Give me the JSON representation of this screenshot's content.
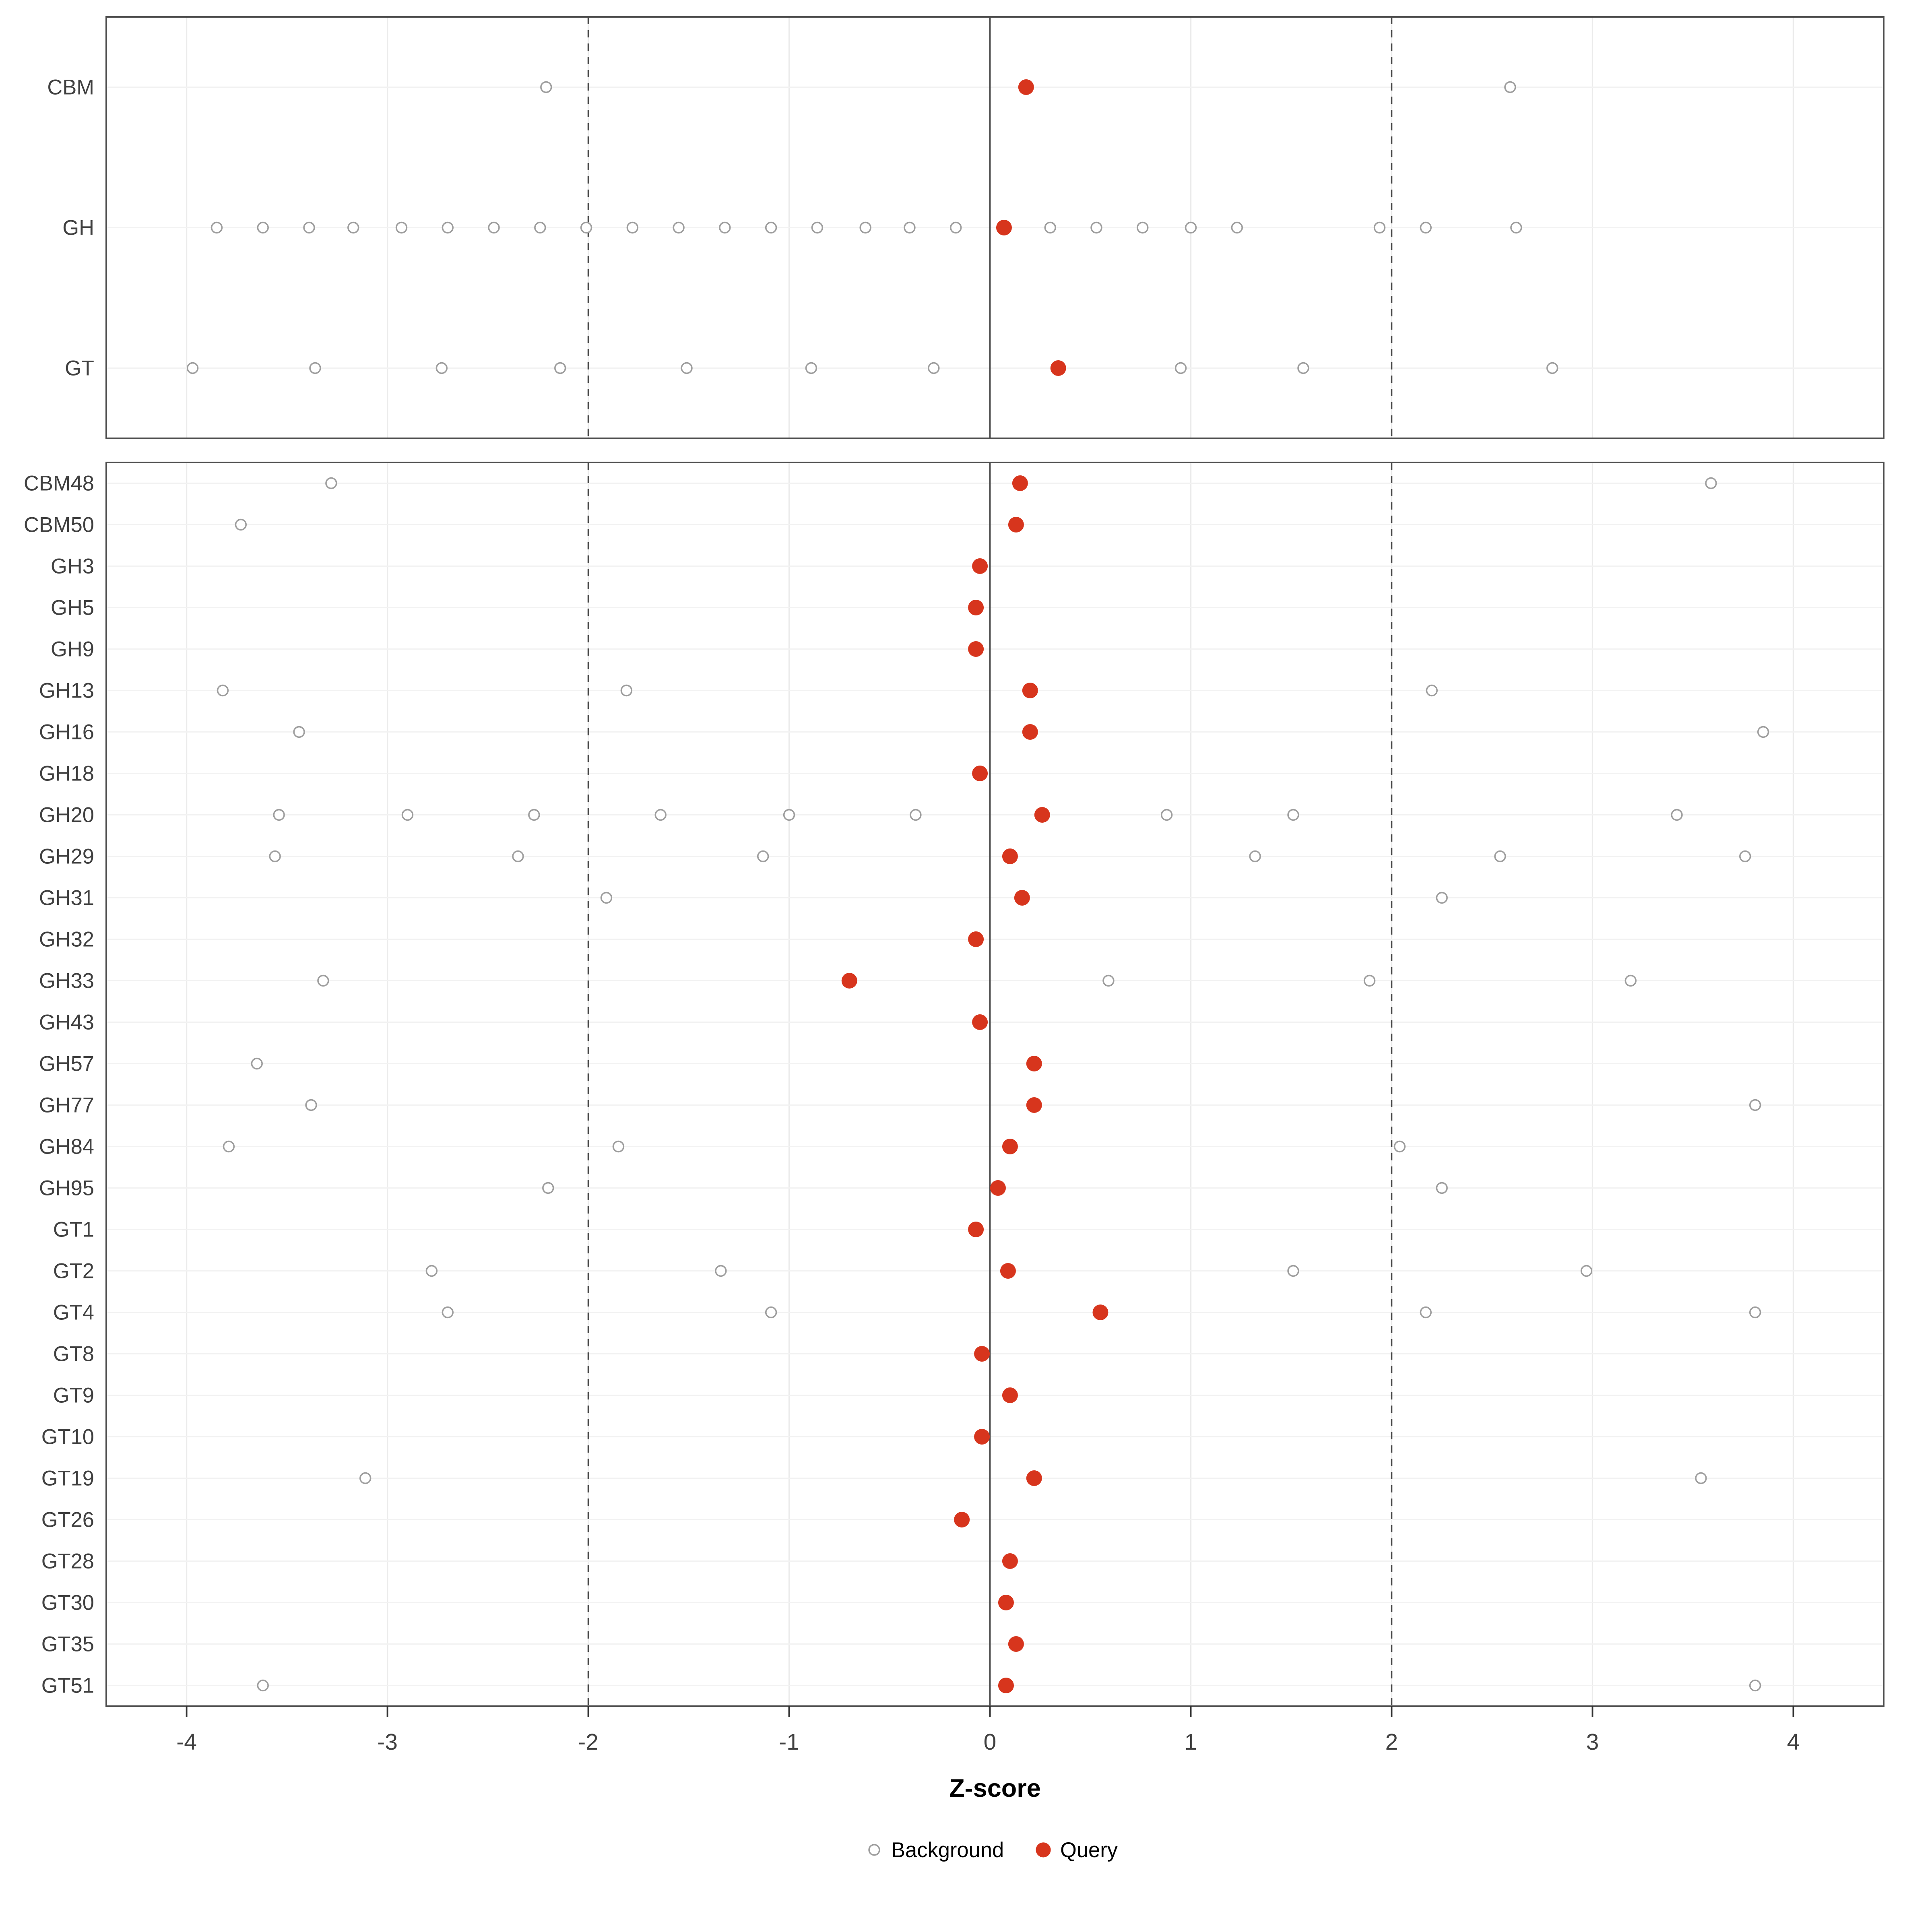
{
  "chart_data": {
    "type": "scatter",
    "title": "",
    "xlabel": "Z-score",
    "xlim": [
      -4.4,
      4.45
    ],
    "x_ticks": [
      -4,
      -3,
      -2,
      -1,
      0,
      1,
      2,
      3,
      4
    ],
    "grid": true,
    "reference_lines": {
      "solid": [
        0
      ],
      "dashed": [
        -2,
        2
      ]
    },
    "legend": {
      "position": "bottom",
      "items": [
        {
          "label": "Background",
          "marker": "open-circle"
        },
        {
          "label": "Query",
          "marker": "filled-circle"
        }
      ]
    },
    "colors": {
      "query_fill": "#d7351d",
      "background_stroke": "#9e9e9e",
      "grid": "#ebebeb",
      "row_grid": "#f2f2f2",
      "reference_line": "#4a4a4a",
      "panel_border": "#4d4d4d",
      "axis_text": "#404040",
      "tick_mark": "#333333",
      "label_text": "#000000"
    },
    "panels": [
      {
        "name": "summary",
        "rows": [
          {
            "label": "CBM",
            "background": [
              -2.21,
              2.59
            ],
            "query": [
              0.18
            ]
          },
          {
            "label": "GH",
            "background": [
              -3.85,
              -3.62,
              -3.39,
              -3.17,
              -2.93,
              -2.7,
              -2.47,
              -2.24,
              -2.01,
              -1.78,
              -1.55,
              -1.32,
              -1.09,
              -0.86,
              -0.62,
              -0.4,
              -0.17,
              0.3,
              0.53,
              0.76,
              1.0,
              1.23,
              1.94,
              2.17,
              2.62
            ],
            "query": [
              0.07
            ]
          },
          {
            "label": "GT",
            "background": [
              -3.97,
              -3.36,
              -2.73,
              -2.14,
              -1.51,
              -0.89,
              -0.28,
              0.95,
              1.56,
              2.8
            ],
            "query": [
              0.34
            ]
          }
        ]
      },
      {
        "name": "families",
        "rows": [
          {
            "label": "CBM48",
            "background": [
              -3.28,
              3.59
            ],
            "query": [
              0.15
            ]
          },
          {
            "label": "CBM50",
            "background": [
              -3.73
            ],
            "query": [
              0.13
            ]
          },
          {
            "label": "GH3",
            "background": [],
            "query": [
              -0.05
            ]
          },
          {
            "label": "GH5",
            "background": [],
            "query": [
              -0.07
            ]
          },
          {
            "label": "GH9",
            "background": [],
            "query": [
              -0.07
            ]
          },
          {
            "label": "GH13",
            "background": [
              -3.82,
              -1.81,
              2.2
            ],
            "query": [
              0.2
            ]
          },
          {
            "label": "GH16",
            "background": [
              -3.44,
              3.85
            ],
            "query": [
              0.2
            ]
          },
          {
            "label": "GH18",
            "background": [],
            "query": [
              -0.05
            ]
          },
          {
            "label": "GH20",
            "background": [
              -3.54,
              -2.9,
              -2.27,
              -1.64,
              -1.0,
              -0.37,
              0.88,
              1.51,
              3.42
            ],
            "query": [
              0.26
            ]
          },
          {
            "label": "GH29",
            "background": [
              -3.56,
              -2.35,
              -1.13,
              1.32,
              2.54,
              3.76
            ],
            "query": [
              0.1
            ]
          },
          {
            "label": "GH31",
            "background": [
              -1.91,
              2.25
            ],
            "query": [
              0.16
            ]
          },
          {
            "label": "GH32",
            "background": [],
            "query": [
              -0.07
            ]
          },
          {
            "label": "GH33",
            "background": [
              -3.32,
              0.59,
              1.89,
              3.19
            ],
            "query": [
              -0.7
            ]
          },
          {
            "label": "GH43",
            "background": [],
            "query": [
              -0.05
            ]
          },
          {
            "label": "GH57",
            "background": [
              -3.65
            ],
            "query": [
              0.22
            ]
          },
          {
            "label": "GH77",
            "background": [
              -3.38,
              3.81
            ],
            "query": [
              0.22
            ]
          },
          {
            "label": "GH84",
            "background": [
              -3.79,
              -1.85,
              2.04
            ],
            "query": [
              0.1
            ]
          },
          {
            "label": "GH95",
            "background": [
              -2.2,
              2.25
            ],
            "query": [
              0.04
            ]
          },
          {
            "label": "GT1",
            "background": [],
            "query": [
              -0.07
            ]
          },
          {
            "label": "GT2",
            "background": [
              -2.78,
              -1.34,
              1.51,
              2.97
            ],
            "query": [
              0.09
            ]
          },
          {
            "label": "GT4",
            "background": [
              -2.7,
              -1.09,
              2.17,
              3.81
            ],
            "query": [
              0.55
            ]
          },
          {
            "label": "GT8",
            "background": [],
            "query": [
              -0.04
            ]
          },
          {
            "label": "GT9",
            "background": [],
            "query": [
              0.1
            ]
          },
          {
            "label": "GT10",
            "background": [],
            "query": [
              -0.04
            ]
          },
          {
            "label": "GT19",
            "background": [
              -3.11,
              3.54
            ],
            "query": [
              0.22
            ]
          },
          {
            "label": "GT26",
            "background": [],
            "query": [
              -0.14
            ]
          },
          {
            "label": "GT28",
            "background": [],
            "query": [
              0.1
            ]
          },
          {
            "label": "GT30",
            "background": [],
            "query": [
              0.08
            ]
          },
          {
            "label": "GT35",
            "background": [],
            "query": [
              0.13
            ]
          },
          {
            "label": "GT51",
            "background": [
              -3.62,
              3.81
            ],
            "query": [
              0.08
            ]
          }
        ]
      }
    ]
  }
}
